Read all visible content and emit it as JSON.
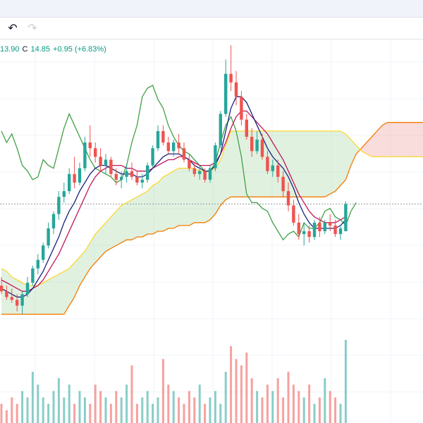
{
  "toolbar": {
    "undo_icon": "undo-arrow-icon",
    "redo_icon": "redo-arrow-icon",
    "undo_glyph": "↶",
    "redo_glyph": "↷"
  },
  "legend": {
    "low_value": "13.90",
    "close_label": "C",
    "close_value": "14.85",
    "change": "+0.95 (+6.83%)"
  },
  "colors": {
    "up": "#26a69a",
    "down": "#ef5350",
    "tenkan": "#1a237e",
    "kijun": "#c2185b",
    "lagging": "#43a047",
    "lead_a": "#fdd835",
    "lead_b": "#f57c00",
    "cloud_up": "#a5d6a7",
    "cloud_down": "#ef9a9a",
    "grid": "#f0f3fa",
    "price_line": "#9598a1"
  },
  "chart_data": {
    "type": "candlestick",
    "grid": true,
    "ylim": [
      10.5,
      20.6
    ],
    "last_close": 14.85,
    "indicators": [
      "Ichimoku Cloud",
      "Volume"
    ],
    "candles": [
      [
        12.0,
        12.3,
        11.7,
        11.8
      ],
      [
        11.8,
        12.0,
        11.5,
        11.6
      ],
      [
        11.6,
        11.9,
        11.4,
        11.5
      ],
      [
        11.5,
        11.7,
        11.1,
        11.3
      ],
      [
        11.3,
        11.8,
        11.0,
        11.7
      ],
      [
        11.7,
        12.3,
        11.6,
        12.1
      ],
      [
        12.1,
        12.7,
        12.0,
        12.6
      ],
      [
        12.6,
        13.1,
        12.4,
        12.9
      ],
      [
        12.9,
        13.5,
        12.8,
        13.4
      ],
      [
        13.4,
        14.2,
        13.3,
        14.0
      ],
      [
        14.0,
        14.6,
        13.8,
        14.5
      ],
      [
        14.5,
        15.3,
        14.3,
        15.1
      ],
      [
        15.1,
        15.6,
        14.9,
        15.3
      ],
      [
        15.3,
        16.1,
        15.2,
        15.9
      ],
      [
        15.9,
        16.5,
        15.4,
        15.6
      ],
      [
        15.6,
        16.3,
        15.5,
        16.1
      ],
      [
        16.1,
        17.2,
        16.0,
        17.0
      ],
      [
        17.0,
        17.6,
        16.5,
        16.8
      ],
      [
        16.8,
        17.0,
        16.3,
        16.5
      ],
      [
        16.5,
        16.8,
        16.0,
        16.2
      ],
      [
        16.2,
        16.6,
        15.9,
        16.4
      ],
      [
        16.4,
        16.5,
        15.8,
        15.9
      ],
      [
        15.9,
        16.1,
        15.5,
        15.7
      ],
      [
        15.7,
        16.0,
        15.4,
        15.8
      ],
      [
        15.8,
        16.2,
        15.6,
        16.0
      ],
      [
        16.0,
        16.3,
        15.7,
        15.8
      ],
      [
        15.8,
        16.0,
        15.5,
        15.6
      ],
      [
        15.6,
        15.9,
        15.4,
        15.7
      ],
      [
        15.7,
        16.3,
        15.6,
        16.2
      ],
      [
        16.2,
        16.9,
        16.1,
        16.8
      ],
      [
        16.8,
        17.6,
        16.7,
        17.4
      ],
      [
        17.4,
        17.6,
        16.9,
        17.0
      ],
      [
        17.0,
        17.2,
        16.6,
        16.7
      ],
      [
        16.7,
        17.1,
        16.5,
        17.0
      ],
      [
        17.0,
        17.3,
        16.6,
        16.8
      ],
      [
        16.8,
        17.0,
        16.3,
        16.4
      ],
      [
        16.4,
        16.6,
        16.0,
        16.1
      ],
      [
        16.1,
        16.3,
        15.8,
        15.9
      ],
      [
        15.9,
        16.2,
        15.7,
        16.0
      ],
      [
        16.0,
        16.1,
        15.6,
        15.7
      ],
      [
        15.7,
        16.2,
        15.6,
        16.1
      ],
      [
        16.1,
        17.0,
        16.0,
        16.9
      ],
      [
        16.9,
        18.1,
        16.8,
        18.0
      ],
      [
        18.0,
        19.9,
        17.9,
        19.4
      ],
      [
        19.4,
        20.4,
        18.8,
        19.1
      ],
      [
        19.1,
        19.5,
        18.3,
        18.6
      ],
      [
        18.6,
        18.8,
        17.6,
        17.8
      ],
      [
        17.8,
        18.0,
        17.1,
        17.2
      ],
      [
        17.2,
        17.5,
        16.5,
        16.7
      ],
      [
        16.7,
        17.4,
        16.6,
        17.1
      ],
      [
        17.1,
        17.3,
        16.4,
        16.5
      ],
      [
        16.5,
        16.7,
        15.9,
        16.0
      ],
      [
        16.0,
        16.4,
        15.8,
        16.2
      ],
      [
        16.2,
        16.4,
        15.6,
        15.8
      ],
      [
        15.8,
        16.0,
        15.1,
        15.3
      ],
      [
        15.3,
        15.6,
        14.6,
        14.8
      ],
      [
        14.8,
        15.0,
        14.1,
        14.2
      ],
      [
        14.2,
        14.5,
        13.6,
        13.8
      ],
      [
        13.8,
        14.2,
        13.4,
        13.9
      ],
      [
        13.9,
        14.1,
        13.5,
        13.7
      ],
      [
        13.7,
        14.3,
        13.6,
        14.2
      ],
      [
        14.2,
        14.4,
        13.7,
        13.9
      ],
      [
        13.9,
        14.3,
        13.8,
        14.2
      ],
      [
        14.2,
        14.5,
        13.9,
        14.1
      ],
      [
        14.1,
        14.3,
        13.7,
        13.8
      ],
      [
        13.8,
        14.1,
        13.6,
        14.0
      ],
      [
        13.9,
        14.95,
        13.9,
        14.85
      ]
    ],
    "tenkan": [
      11.9,
      11.8,
      11.7,
      11.6,
      11.6,
      11.7,
      11.9,
      12.2,
      12.5,
      12.9,
      13.3,
      13.7,
      14.2,
      14.6,
      14.9,
      15.3,
      15.6,
      15.9,
      16.1,
      16.2,
      16.2,
      16.1,
      16.0,
      15.9,
      15.9,
      15.9,
      15.8,
      15.8,
      15.9,
      16.1,
      16.3,
      16.5,
      16.6,
      16.6,
      16.6,
      16.5,
      16.4,
      16.2,
      16.1,
      16.0,
      16.0,
      16.2,
      16.6,
      17.4,
      18.2,
      18.6,
      18.6,
      18.4,
      18.0,
      17.6,
      17.2,
      16.8,
      16.5,
      16.3,
      16.1,
      15.8,
      15.4,
      14.9,
      14.5,
      14.2,
      14.0,
      14.0,
      14.0,
      14.0,
      14.0,
      14.1,
      14.3
    ],
    "kijun": [
      12.2,
      12.1,
      12.0,
      11.9,
      11.8,
      11.8,
      11.9,
      12.0,
      12.2,
      12.5,
      12.8,
      13.1,
      13.5,
      13.9,
      14.3,
      14.7,
      15.1,
      15.5,
      15.8,
      16.0,
      16.1,
      16.2,
      16.2,
      16.2,
      16.1,
      16.1,
      16.0,
      16.0,
      16.0,
      16.1,
      16.2,
      16.3,
      16.4,
      16.4,
      16.5,
      16.5,
      16.4,
      16.3,
      16.2,
      16.2,
      16.2,
      16.3,
      16.6,
      17.0,
      17.5,
      17.9,
      18.1,
      18.1,
      17.9,
      17.7,
      17.5,
      17.3,
      17.0,
      16.7,
      16.4,
      16.0,
      15.6,
      15.2,
      14.9,
      14.6,
      14.4,
      14.3,
      14.2,
      14.2,
      14.2,
      14.3,
      14.4
    ],
    "lagging": [
      17.4,
      17.0,
      17.3,
      16.8,
      16.2,
      16.0,
      15.7,
      15.8,
      16.4,
      16.2,
      16.1,
      16.8,
      17.5,
      18.0,
      17.6,
      17.2,
      16.8,
      16.4,
      16.1,
      16.0,
      15.9,
      15.8,
      15.6,
      15.7,
      16.2,
      17.0,
      17.6,
      18.6,
      18.9,
      19.0,
      18.5,
      18.2,
      17.6,
      17.2,
      16.9,
      16.7,
      16.6,
      16.4,
      16.2,
      16.0,
      16.0,
      16.3,
      17.0,
      17.6,
      17.9,
      17.4,
      16.5,
      15.2,
      14.9,
      14.9,
      14.7,
      14.6,
      14.2,
      13.9,
      13.6,
      13.8,
      13.9,
      13.7,
      14.2,
      14.0,
      14.0,
      14.2,
      14.6,
      14.7,
      14.4,
      14.3,
      14.1,
      14.6,
      14.9
    ],
    "lead_a": [
      12.6,
      12.5,
      12.3,
      12.2,
      12.1,
      12.0,
      12.0,
      12.0,
      12.1,
      12.2,
      12.3,
      12.4,
      12.5,
      12.6,
      12.8,
      13.0,
      13.2,
      13.5,
      13.8,
      14.0,
      14.2,
      14.4,
      14.6,
      14.8,
      14.9,
      15.0,
      15.1,
      15.2,
      15.3,
      15.5,
      15.6,
      15.8,
      15.9,
      16.0,
      16.1,
      16.1,
      16.1,
      16.1,
      16.0,
      16.0,
      16.0,
      16.1,
      16.4,
      16.9,
      17.4,
      17.4,
      17.4,
      17.4,
      17.4,
      17.4,
      17.4,
      17.4,
      17.4,
      17.4,
      17.4,
      17.4,
      17.4,
      17.4,
      17.4,
      17.4,
      17.4,
      17.4,
      17.4,
      17.4,
      17.4,
      17.4,
      17.3,
      17.1,
      16.9,
      16.7,
      16.6,
      16.5,
      16.5,
      16.5,
      16.5,
      16.5,
      16.5,
      16.5,
      16.5,
      16.5,
      16.5,
      16.5,
      16.5,
      16.5,
      16.5,
      16.5,
      16.5,
      16.6,
      16.6
    ],
    "lead_b": [
      11.0,
      11.0,
      11.0,
      11.0,
      11.0,
      11.0,
      11.0,
      11.0,
      11.0,
      11.0,
      11.0,
      11.0,
      11.0,
      11.3,
      11.6,
      12.0,
      12.3,
      12.6,
      12.8,
      13.0,
      13.2,
      13.3,
      13.4,
      13.5,
      13.6,
      13.6,
      13.7,
      13.7,
      13.8,
      13.8,
      13.9,
      13.9,
      14.0,
      14.0,
      14.1,
      14.1,
      14.1,
      14.2,
      14.2,
      14.2,
      14.3,
      14.5,
      14.8,
      15.0,
      15.1,
      15.1,
      15.1,
      15.1,
      15.1,
      15.1,
      15.1,
      15.1,
      15.1,
      15.1,
      15.1,
      15.1,
      15.1,
      15.1,
      15.1,
      15.1,
      15.1,
      15.1,
      15.1,
      15.2,
      15.3,
      15.5,
      15.7,
      16.2,
      16.6,
      16.8,
      17.0,
      17.2,
      17.4,
      17.6,
      17.7,
      17.7,
      17.7,
      17.7,
      17.7,
      17.7,
      17.7,
      17.7,
      17.7,
      17.7,
      17.7,
      17.7,
      17.7,
      17.7,
      17.7,
      17.7,
      17.7,
      17.7,
      17.7,
      17.7
    ],
    "volume": [
      3,
      2,
      4,
      3,
      5,
      4,
      8,
      6,
      4,
      3,
      5,
      7,
      4,
      6,
      3,
      5,
      4,
      3,
      6,
      5,
      4,
      3,
      5,
      4,
      6,
      9,
      3,
      4,
      5,
      3,
      4,
      10,
      6,
      5,
      4,
      3,
      5,
      4,
      6,
      3,
      4,
      5,
      3,
      8,
      12,
      10,
      9,
      11,
      7,
      5,
      4,
      6,
      5,
      7,
      4,
      8,
      6,
      5,
      4,
      6,
      3,
      4,
      7,
      5,
      4,
      3,
      13
    ]
  }
}
